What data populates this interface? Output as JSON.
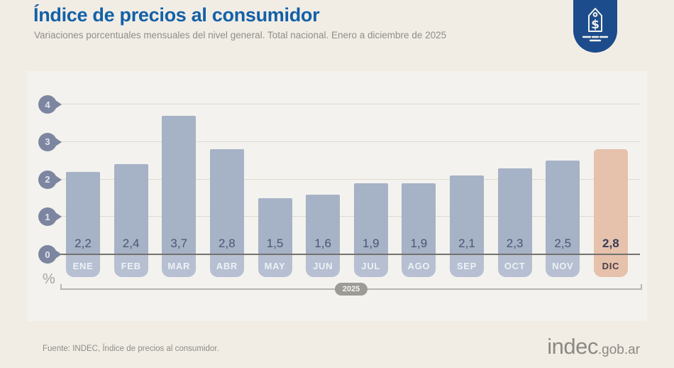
{
  "header": {
    "title": "Índice de precios al consumidor",
    "subtitle": "Variaciones porcentuales mensuales del nivel general. Total nacional. Enero a diciembre de 2025"
  },
  "badge": {
    "icon": "price-tag-icon"
  },
  "chart_data": {
    "type": "bar",
    "title": "Índice de precios al consumidor",
    "subtitle": "Variaciones porcentuales mensuales del nivel general. Total nacional. Enero a diciembre de 2025",
    "categories": [
      "ENE",
      "FEB",
      "MAR",
      "ABR",
      "MAY",
      "JUN",
      "JUL",
      "AGO",
      "SEP",
      "OCT",
      "NOV",
      "DIC"
    ],
    "values": [
      2.2,
      2.4,
      3.7,
      2.8,
      1.5,
      1.6,
      1.9,
      1.9,
      2.1,
      2.3,
      2.5,
      2.8
    ],
    "value_labels": [
      "2,2",
      "2,4",
      "3,7",
      "2,8",
      "1,5",
      "1,6",
      "1,9",
      "1,9",
      "2,1",
      "2,3",
      "2,5",
      "2,8"
    ],
    "ylabel": "%",
    "ylim": [
      0,
      4
    ],
    "yticks": [
      0,
      1,
      2,
      3,
      4
    ],
    "grid": true,
    "legend": false,
    "x_group_label": "2025",
    "highlight_index": 11,
    "colors": {
      "bar": "#a6b2c6",
      "bar_highlight": "#e6c1ac",
      "month_tab": "#b6c0d2",
      "ytick_pin": "#7d86a0",
      "title_blue": "#1360a7",
      "badge_navy": "#1c4c8b"
    }
  },
  "footer": {
    "source": "Fuente: INDEC, Índice de precios al consumidor.",
    "logo_main": "indec",
    "logo_suffix": ".gob.ar"
  }
}
